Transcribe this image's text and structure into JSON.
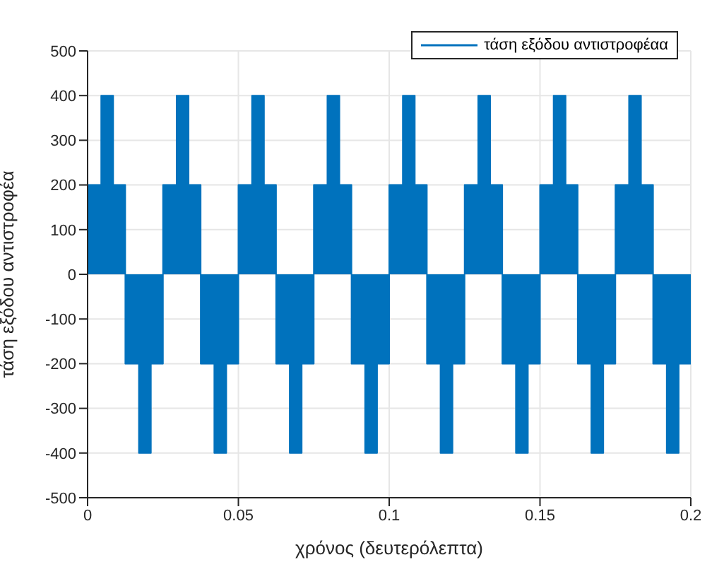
{
  "chart_data": {
    "type": "step",
    "xlabel": "χρόνος (δευτερόλεπτα)",
    "ylabel": "τάση εξόδου αντιστροφέα",
    "x": [
      0,
      0.0045,
      0.0085,
      0.0125,
      0.017,
      0.021,
      0.025,
      0.0295,
      0.0335,
      0.0375,
      0.042,
      0.046,
      0.05,
      0.0545,
      0.0585,
      0.0625,
      0.067,
      0.071,
      0.075,
      0.0795,
      0.0835,
      0.0875,
      0.092,
      0.096,
      0.1,
      0.1045,
      0.1085,
      0.1125,
      0.117,
      0.121,
      0.125,
      0.1295,
      0.1335,
      0.1375,
      0.142,
      0.146,
      0.15,
      0.1545,
      0.1585,
      0.1625,
      0.167,
      0.171,
      0.175,
      0.1795,
      0.1835,
      0.1875,
      0.192,
      0.196,
      0.2
    ],
    "series": [
      {
        "name": "τάση εξόδου αντιστροφέαα",
        "color": "#0072bd",
        "values": [
          200,
          400,
          200,
          -200,
          -400,
          -200,
          200,
          400,
          200,
          -200,
          -400,
          -200,
          200,
          400,
          200,
          -200,
          -400,
          -200,
          200,
          400,
          200,
          -200,
          -400,
          -200,
          200,
          400,
          200,
          -200,
          -400,
          -200,
          200,
          400,
          200,
          -200,
          -400,
          -200,
          200,
          400,
          200,
          -200,
          -400,
          -200,
          200,
          400,
          200,
          -200,
          -400,
          -200,
          -200
        ]
      }
    ],
    "xlim": [
      0,
      0.2
    ],
    "xticks": [
      0,
      0.05,
      0.1,
      0.15,
      0.2
    ],
    "ylim": [
      -500,
      500
    ],
    "yticks": [
      -500,
      -400,
      -300,
      -200,
      -100,
      0,
      100,
      200,
      300,
      400,
      500
    ],
    "grid": true,
    "legend": "top right"
  }
}
